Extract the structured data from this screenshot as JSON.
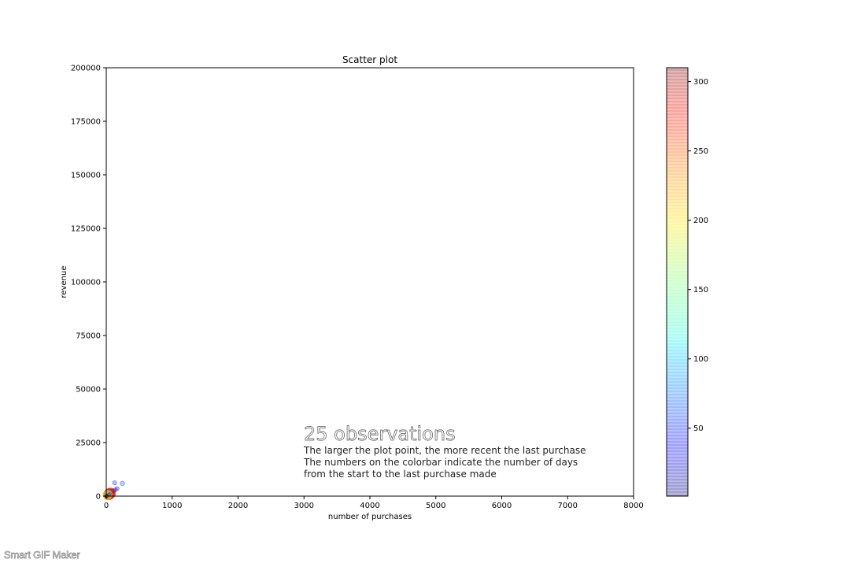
{
  "chart_data": {
    "type": "scatter",
    "title": "Scatter plot",
    "xlabel": "number of purchases",
    "ylabel": "revenue",
    "xlim": [
      0,
      8000
    ],
    "ylim": [
      0,
      200000
    ],
    "xticks": [
      "0",
      "1000",
      "2000",
      "3000",
      "4000",
      "5000",
      "6000",
      "7000",
      "8000"
    ],
    "yticks": [
      "0",
      "25000",
      "50000",
      "75000",
      "100000",
      "125000",
      "150000",
      "175000",
      "200000"
    ],
    "grid": false,
    "colorbar": {
      "colormap": "jet",
      "range": [
        1,
        310
      ],
      "ticks": [
        "50",
        "100",
        "150",
        "200",
        "250",
        "300"
      ]
    },
    "annotation": {
      "headline": "25 observations",
      "lines": [
        "The larger the plot point, the more recent the last purchase",
        "The numbers on the colorbar indicate the number of days",
        "from the start to the last purchase made"
      ]
    },
    "points": [
      {
        "x": 245,
        "y": 5900,
        "c": 60
      },
      {
        "x": 128,
        "y": 6200,
        "c": 45
      },
      {
        "x": 165,
        "y": 3500,
        "c": 35
      },
      {
        "x": 140,
        "y": 3000,
        "c": 30
      },
      {
        "x": 110,
        "y": 2500,
        "c": 40
      },
      {
        "x": 85,
        "y": 2000,
        "c": 50
      },
      {
        "x": 70,
        "y": 1500,
        "c": 260
      },
      {
        "x": 60,
        "y": 1300,
        "c": 290
      },
      {
        "x": 50,
        "y": 1000,
        "c": 300
      },
      {
        "x": 40,
        "y": 800,
        "c": 280
      },
      {
        "x": 30,
        "y": 600,
        "c": 270
      },
      {
        "x": 25,
        "y": 500,
        "c": 240
      },
      {
        "x": 20,
        "y": 400,
        "c": 220
      },
      {
        "x": 15,
        "y": 300,
        "c": 200
      },
      {
        "x": 12,
        "y": 250,
        "c": 15
      },
      {
        "x": 10,
        "y": 200,
        "c": 10
      },
      {
        "x": 8,
        "y": 150,
        "c": 5
      },
      {
        "x": 6,
        "y": 120,
        "c": 8
      },
      {
        "x": 5,
        "y": 100,
        "c": 3
      },
      {
        "x": 4,
        "y": 80,
        "c": 2
      },
      {
        "x": 3,
        "y": 60,
        "c": 1
      },
      {
        "x": 2,
        "y": 50,
        "c": 1
      },
      {
        "x": 55,
        "y": 900,
        "c": 20
      },
      {
        "x": 45,
        "y": 700,
        "c": 25
      },
      {
        "x": 35,
        "y": 1200,
        "c": 150
      }
    ]
  },
  "watermark": "Smart GIF Maker"
}
